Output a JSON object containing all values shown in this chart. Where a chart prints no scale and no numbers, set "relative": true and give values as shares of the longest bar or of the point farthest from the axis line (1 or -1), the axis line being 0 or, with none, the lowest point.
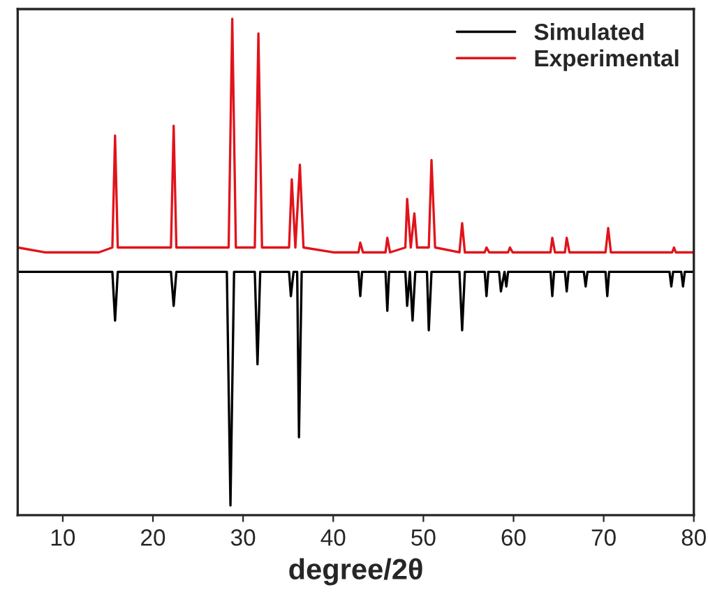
{
  "chart_data": {
    "type": "line",
    "xlabel": "degree/2θ",
    "relative": true,
    "xlim": [
      5,
      80
    ],
    "xticks": [
      10,
      20,
      30,
      40,
      50,
      60,
      70,
      80
    ],
    "grid": false,
    "legend": "top right",
    "line_style": "solid",
    "marker": "none",
    "series": [
      {
        "name": "Simulated",
        "color": "#000000",
        "x": [
          5,
          15.5,
          15.8,
          16.1,
          22,
          22.3,
          22.6,
          28.2,
          28.6,
          29.0,
          31.3,
          31.6,
          31.9,
          35.1,
          35.3,
          35.6,
          36.0,
          36.2,
          36.5,
          42.8,
          43.0,
          43.2,
          45.8,
          46.0,
          46.2,
          48.0,
          48.2,
          48.5,
          48.8,
          49.1,
          50.4,
          50.6,
          50.9,
          54.0,
          54.3,
          54.6,
          56.8,
          57.0,
          57.2,
          58.4,
          58.6,
          59.0,
          59.2,
          59.4,
          64.1,
          64.3,
          64.5,
          65.7,
          65.9,
          66.1,
          67.8,
          68.0,
          68.2,
          70.2,
          70.4,
          70.6,
          77.3,
          77.5,
          77.7,
          78.6,
          78.8,
          79.0,
          80
        ],
        "values": [
          0.48,
          0.48,
          0.38,
          0.48,
          0.48,
          0.41,
          0.48,
          0.48,
          0,
          0.48,
          0.48,
          0.29,
          0.48,
          0.48,
          0.43,
          0.48,
          0.48,
          0.14,
          0.48,
          0.48,
          0.43,
          0.48,
          0.48,
          0.4,
          0.48,
          0.48,
          0.41,
          0.48,
          0.38,
          0.48,
          0.48,
          0.36,
          0.48,
          0.48,
          0.36,
          0.48,
          0.48,
          0.43,
          0.48,
          0.48,
          0.44,
          0.48,
          0.45,
          0.48,
          0.48,
          0.43,
          0.48,
          0.48,
          0.44,
          0.48,
          0.48,
          0.45,
          0.48,
          0.48,
          0.43,
          0.48,
          0.48,
          0.45,
          0.48,
          0.48,
          0.45,
          0.48,
          0.48
        ]
      },
      {
        "name": "Experimental",
        "color": "#e0141b",
        "x": [
          5,
          8,
          11,
          14,
          15.5,
          15.8,
          16.1,
          19,
          22,
          22.3,
          22.6,
          26,
          28.4,
          28.8,
          29.2,
          31.3,
          31.7,
          32.1,
          35.1,
          35.4,
          35.8,
          36.3,
          36.7,
          40,
          42.8,
          43.0,
          43.3,
          45.8,
          46.0,
          46.3,
          48.0,
          48.2,
          48.6,
          49.0,
          49.3,
          50.6,
          50.9,
          51.3,
          54.0,
          54.3,
          54.6,
          56.8,
          57.0,
          57.3,
          59.4,
          59.6,
          59.9,
          62,
          64.1,
          64.3,
          64.6,
          65.7,
          65.9,
          66.2,
          68,
          70.2,
          70.5,
          70.8,
          74,
          77.6,
          77.8,
          78.0,
          80
        ],
        "values": [
          0.53,
          0.52,
          0.52,
          0.52,
          0.53,
          0.76,
          0.53,
          0.53,
          0.53,
          0.78,
          0.53,
          0.53,
          0.53,
          1,
          0.53,
          0.53,
          0.97,
          0.53,
          0.53,
          0.67,
          0.53,
          0.7,
          0.53,
          0.52,
          0.52,
          0.54,
          0.52,
          0.52,
          0.55,
          0.52,
          0.53,
          0.63,
          0.53,
          0.6,
          0.53,
          0.53,
          0.71,
          0.53,
          0.52,
          0.58,
          0.52,
          0.52,
          0.53,
          0.52,
          0.52,
          0.53,
          0.52,
          0.52,
          0.52,
          0.55,
          0.52,
          0.52,
          0.55,
          0.52,
          0.52,
          0.52,
          0.57,
          0.52,
          0.52,
          0.52,
          0.53,
          0.52,
          0.52
        ]
      }
    ]
  }
}
